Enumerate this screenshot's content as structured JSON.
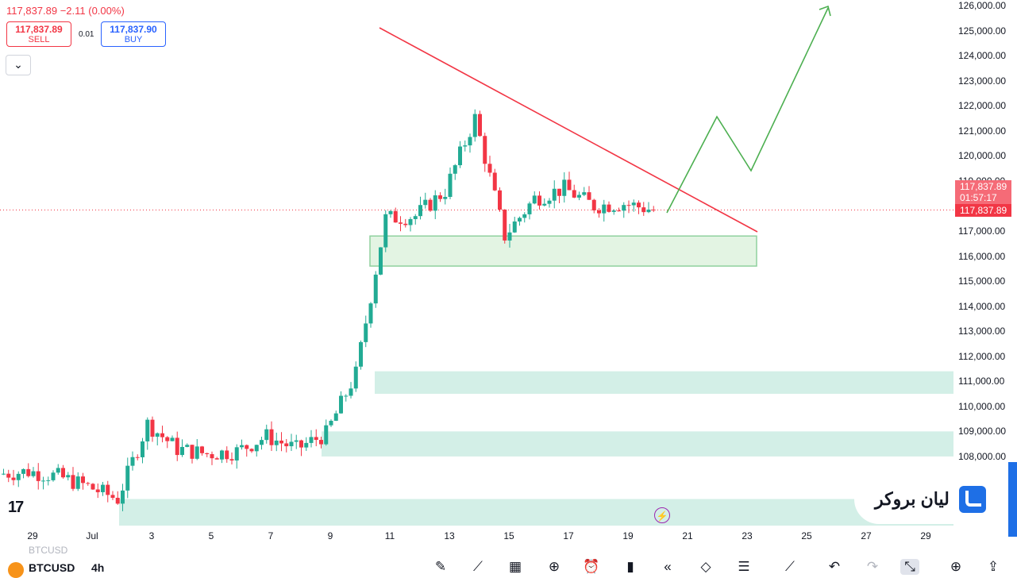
{
  "header": {
    "price_change": "117,837.89  −2.11 (0.00%)",
    "sell_price": "117,837.89",
    "sell_label": "SELL",
    "buy_price": "117,837.90",
    "buy_label": "BUY",
    "spread": "0.01",
    "collapse_icon": "chevron-down-icon"
  },
  "price_axis": {
    "labels": [
      "126,000.00",
      "125,000.00",
      "124,000.00",
      "123,000.00",
      "122,000.00",
      "121,000.00",
      "120,000.00",
      "119,000.00",
      "117,000.00",
      "116,000.00",
      "115,000.00",
      "114,000.00",
      "113,000.00",
      "112,000.00",
      "111,000.00",
      "110,000.00",
      "109,000.00",
      "108,000.00"
    ],
    "current_price": "117,837.89",
    "countdown": "01:57:17",
    "current_price_repeat": "117,837.89"
  },
  "time_axis": {
    "labels": [
      "29",
      "Jul",
      "3",
      "5",
      "7",
      "9",
      "11",
      "13",
      "15",
      "17",
      "19",
      "21",
      "23",
      "25",
      "27",
      "29"
    ]
  },
  "branding": {
    "tv_logo": "17",
    "broker_name": "لیان بروکر"
  },
  "footer": {
    "symbol": "BTCUSD",
    "symbol_ghost": "BTCUSD",
    "interval": "4h",
    "tools": [
      "pencil-icon",
      "indicators-icon",
      "layout-icon",
      "add-icon",
      "alert-icon",
      "candle-type-icon",
      "replay-icon",
      "layers-icon",
      "settings-icon",
      "trend-line-icon",
      "undo-icon",
      "redo-icon",
      "fullscreen-icon",
      "add-icon",
      "share-icon"
    ]
  },
  "colors": {
    "bull": "#22ab94",
    "bear": "#f23645",
    "trendline": "#f23645",
    "projection": "#4caf50",
    "zone_light": "#d3efe7",
    "zone_green": "#e3f4e3"
  },
  "chart_data": {
    "type": "candlestick",
    "symbol": "BTCUSD",
    "interval": "4h",
    "ylim": [
      107000,
      126500
    ],
    "current_price": 117837.89,
    "approx_price_path": [
      {
        "date": "Jun 28",
        "close": 107300
      },
      {
        "date": "Jun 29",
        "close": 107400
      },
      {
        "date": "Jun 30",
        "close": 107200
      },
      {
        "date": "Jul 1",
        "close": 106800
      },
      {
        "date": "Jul 2",
        "close": 106300
      },
      {
        "date": "Jul 3",
        "close": 109300
      },
      {
        "date": "Jul 4",
        "close": 108300
      },
      {
        "date": "Jul 5",
        "close": 108100
      },
      {
        "date": "Jul 6",
        "close": 108200
      },
      {
        "date": "Jul 7",
        "close": 108800
      },
      {
        "date": "Jul 8",
        "close": 108300
      },
      {
        "date": "Jul 9",
        "close": 108900
      },
      {
        "date": "Jul 10",
        "close": 111300
      },
      {
        "date": "Jul 11",
        "close": 117500
      },
      {
        "date": "Jul 12",
        "close": 117600
      },
      {
        "date": "Jul 13",
        "close": 118600
      },
      {
        "date": "Jul 14",
        "close": 121500
      },
      {
        "date": "Jul 15",
        "close": 116800
      },
      {
        "date": "Jul 16",
        "close": 118300
      },
      {
        "date": "Jul 17",
        "close": 118700
      },
      {
        "date": "Jul 18",
        "close": 118000
      },
      {
        "date": "Jul 19",
        "close": 118100
      },
      {
        "date": "Jul 20",
        "close": 117838
      }
    ],
    "annotations": [
      {
        "kind": "descending-trendline",
        "from": {
          "date": "Jul 10",
          "price": 124500
        },
        "to": {
          "date": "Jul 23",
          "price": 116900
        }
      },
      {
        "kind": "support-zone",
        "price_range": [
          115600,
          116800
        ]
      },
      {
        "kind": "demand-zone",
        "price_range": [
          110500,
          111400
        ]
      },
      {
        "kind": "demand-zone",
        "price_range": [
          108000,
          109000
        ]
      },
      {
        "kind": "demand-zone",
        "price_range": [
          105000,
          106300
        ]
      },
      {
        "kind": "projection-path",
        "points": [
          117838,
          121500,
          119400,
          126000
        ]
      }
    ]
  }
}
